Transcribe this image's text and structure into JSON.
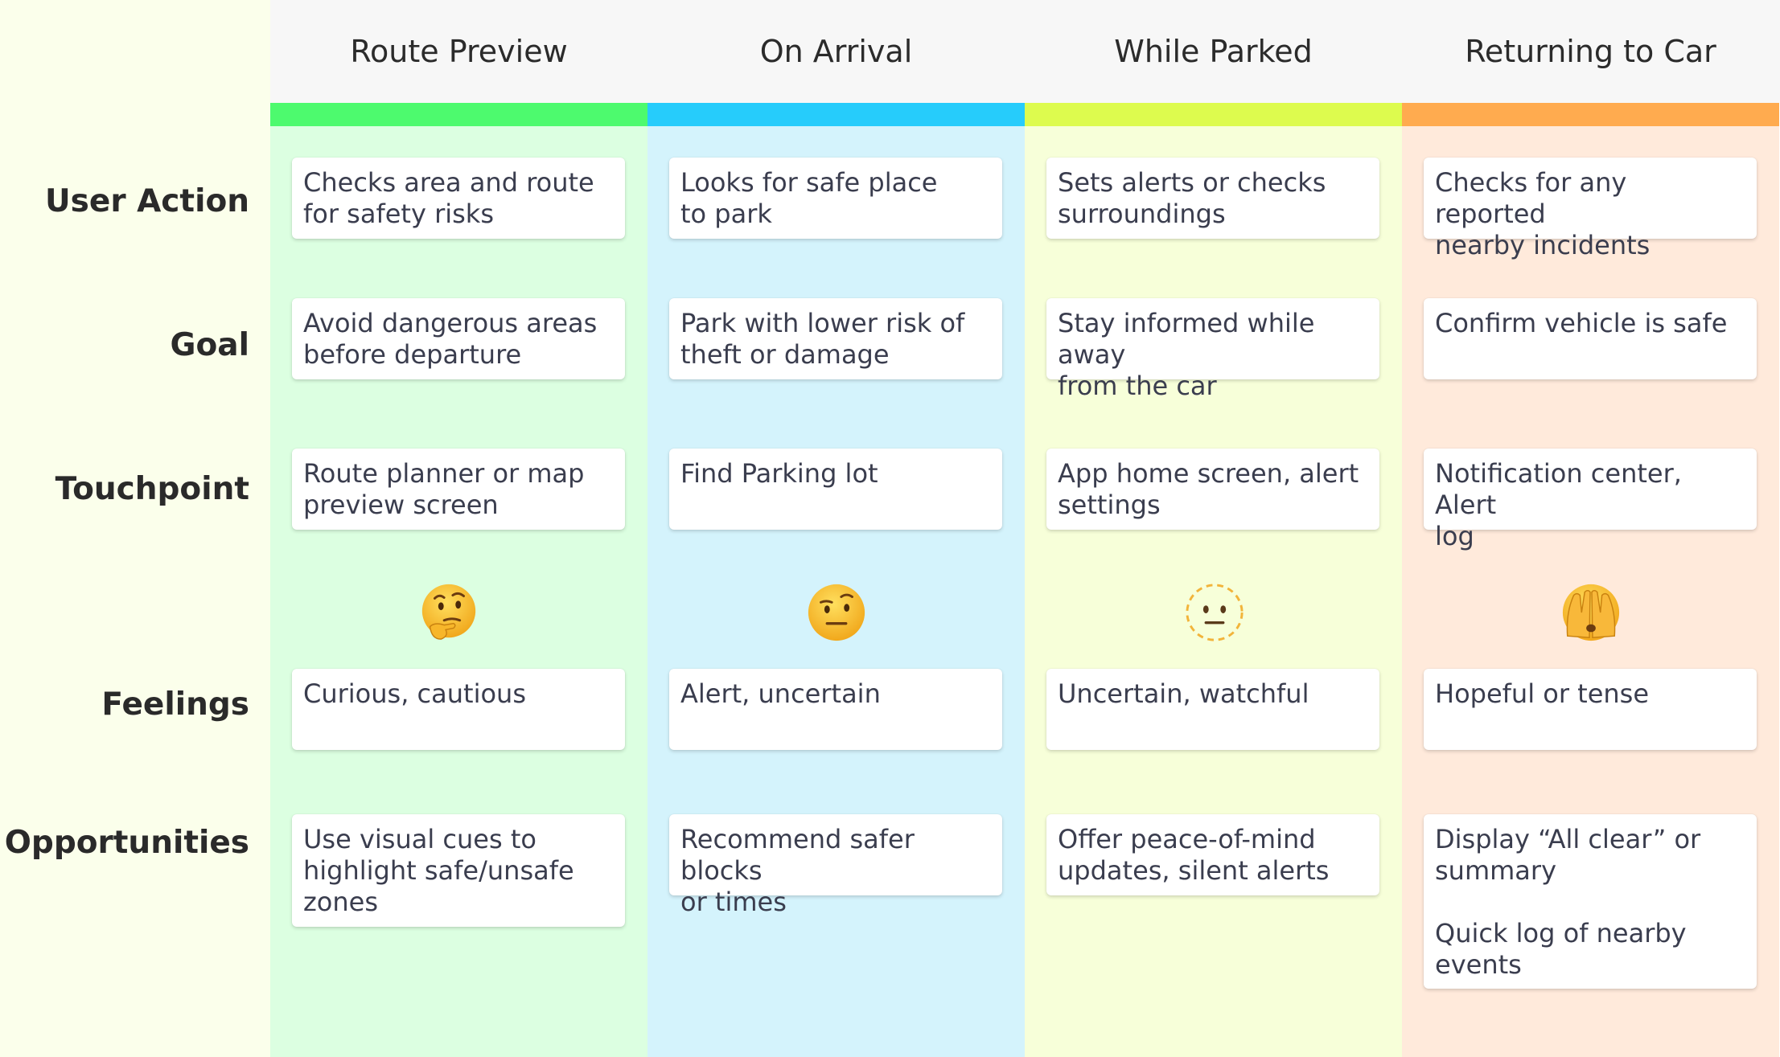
{
  "stages": [
    {
      "title": "Route Preview",
      "bar_color": "#4dfa6e",
      "bg_color": "#dcffe1"
    },
    {
      "title": "On Arrival",
      "bar_color": "#26ccfb",
      "bg_color": "#d4f3fc"
    },
    {
      "title": "While Parked",
      "bar_color": "#ddfb4e",
      "bg_color": "#f7ffd9"
    },
    {
      "title": "Returning to Car",
      "bar_color": "#ffab4f",
      "bg_color": "#ffeadb"
    }
  ],
  "row_labels": {
    "user_action": "User Action",
    "goal": "Goal",
    "touchpoint": "Touchpoint",
    "feelings": "Feelings",
    "opportunities": "Opportunities"
  },
  "rows": {
    "user_action": [
      "Checks area and route\nfor safety risks",
      "Looks for safe place\nto park",
      "Sets alerts or checks\nsurroundings",
      "Checks for any reported\nnearby incidents"
    ],
    "goal": [
      "Avoid dangerous areas\nbefore departure",
      "Park with lower risk of\ntheft or damage",
      "Stay informed while away\nfrom the car",
      "Confirm vehicle is safe"
    ],
    "touchpoint": [
      "Route planner or map\npreview screen",
      "Find Parking lot",
      "App home screen, alert\nsettings",
      "Notification center, Alert\nlog"
    ],
    "feelings": [
      "Curious, cautious",
      "Alert, uncertain",
      "Uncertain, watchful",
      "Hopeful or tense"
    ],
    "opportunities": [
      "Use visual cues to\nhighlight safe/unsafe\nzones",
      "Recommend safer blocks\nor times",
      "Offer peace-of-mind\nupdates, silent alerts",
      "Display “All clear” or\nsummary\n\nQuick log of nearby\nevents"
    ]
  },
  "emojis": [
    "thinking-face",
    "face-with-raised-eyebrow",
    "dotted-line-face",
    "face-with-open-eyes-and-hand-over-mouth"
  ]
}
